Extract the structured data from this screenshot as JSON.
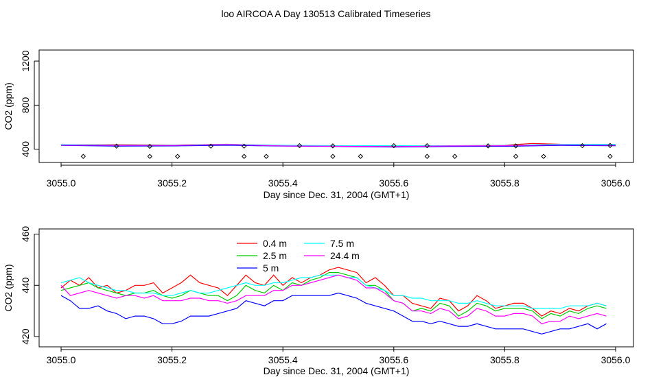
{
  "chart_data": [
    {
      "type": "line",
      "title": "loo AIRCOA A  Day 130513  Calibrated Timeseries",
      "xlabel": "Day since Dec. 31, 2004 (GMT+1)",
      "ylabel": "CO2 (ppm)",
      "xlim": [
        3055.0,
        3056.0
      ],
      "ylim": [
        280,
        1300
      ],
      "x_ticks": [
        "3055.0",
        "3055.2",
        "3055.4",
        "3055.6",
        "3055.8",
        "3056.0"
      ],
      "y_ticks": [
        "400",
        "800",
        "1200"
      ],
      "series": [
        {
          "name": "0.4 m",
          "color": "#ff0000",
          "x": [
            3055.0,
            3055.1,
            3055.2,
            3055.3,
            3055.4,
            3055.5,
            3055.6,
            3055.7,
            3055.8,
            3055.85,
            3055.9,
            3056.0
          ],
          "values": [
            440,
            441,
            438,
            445,
            432,
            430,
            424,
            430,
            436,
            452,
            445,
            441
          ]
        },
        {
          "name": "2.5 m",
          "color": "#00cc00",
          "x": [
            3055.0,
            3055.1,
            3055.2,
            3055.3,
            3055.4,
            3055.5,
            3055.6,
            3055.7,
            3055.8,
            3055.9,
            3056.0
          ],
          "values": [
            437,
            438,
            436,
            443,
            431,
            430,
            426,
            431,
            434,
            444,
            437
          ]
        },
        {
          "name": "5 m",
          "color": "#0000ff",
          "x": [
            3055.0,
            3055.1,
            3055.2,
            3055.3,
            3055.4,
            3055.5,
            3055.6,
            3055.7,
            3055.8,
            3055.9,
            3056.0
          ],
          "values": [
            434,
            428,
            430,
            436,
            428,
            425,
            420,
            425,
            427,
            434,
            431
          ]
        },
        {
          "name": "7.5 m",
          "color": "#00ffff",
          "x": [
            3055.0,
            3055.1,
            3055.2,
            3055.3,
            3055.4,
            3055.5,
            3055.6,
            3055.7,
            3055.8,
            3055.9,
            3056.0
          ],
          "values": [
            442,
            438,
            437,
            444,
            436,
            432,
            432,
            432,
            435,
            444,
            444
          ]
        },
        {
          "name": "24.4 m",
          "color": "#ff00ff",
          "x": [
            3055.0,
            3055.1,
            3055.2,
            3055.3,
            3055.4,
            3055.5,
            3055.6,
            3055.7,
            3055.8,
            3055.9,
            3056.0
          ],
          "values": [
            438,
            435,
            434,
            443,
            430,
            427,
            424,
            430,
            432,
            440,
            436
          ]
        }
      ],
      "markers_upper": {
        "x": [
          3055.1,
          3055.16,
          3055.27,
          3055.33,
          3055.43,
          3055.49,
          3055.6,
          3055.66,
          3055.77,
          3055.82,
          3055.94,
          3055.99
        ],
        "values": [
          428,
          426,
          428,
          428,
          432,
          430,
          432,
          432,
          430,
          430,
          432,
          434
        ]
      },
      "markers_lower": {
        "x": [
          3055.04,
          3055.16,
          3055.21,
          3055.33,
          3055.37,
          3055.49,
          3055.54,
          3055.66,
          3055.71,
          3055.82,
          3055.87,
          3055.99
        ],
        "values": [
          335,
          335,
          335,
          335,
          335,
          335,
          335,
          335,
          335,
          335,
          335,
          335
        ]
      }
    },
    {
      "type": "line",
      "title": "",
      "xlabel": "Day since Dec. 31, 2004 (GMT+1)",
      "ylabel": "CO2 (ppm)",
      "xlim": [
        3055.0,
        3056.0
      ],
      "ylim": [
        416,
        462
      ],
      "x_ticks": [
        "3055.0",
        "3055.2",
        "3055.4",
        "3055.6",
        "3055.8",
        "3056.0"
      ],
      "y_ticks": [
        "420",
        "440",
        "460"
      ],
      "legend": "top-left inside, two columns",
      "x": [
        3055.0,
        3055.0167,
        3055.0333,
        3055.05,
        3055.0667,
        3055.0833,
        3055.1,
        3055.1167,
        3055.1333,
        3055.15,
        3055.1667,
        3055.1833,
        3055.2,
        3055.2167,
        3055.2333,
        3055.25,
        3055.2667,
        3055.2833,
        3055.3,
        3055.3167,
        3055.3333,
        3055.35,
        3055.3667,
        3055.3833,
        3055.4,
        3055.4167,
        3055.4333,
        3055.45,
        3055.4667,
        3055.4833,
        3055.5,
        3055.5167,
        3055.5333,
        3055.55,
        3055.5667,
        3055.5833,
        3055.6,
        3055.6167,
        3055.6333,
        3055.65,
        3055.6667,
        3055.6833,
        3055.7,
        3055.7167,
        3055.7333,
        3055.75,
        3055.7667,
        3055.7833,
        3055.8,
        3055.8167,
        3055.8333,
        3055.85,
        3055.8667,
        3055.8833,
        3055.9,
        3055.9167,
        3055.9333,
        3055.95,
        3055.9667,
        3055.9833
      ],
      "series": [
        {
          "name": "0.4 m",
          "color": "#ff0000",
          "values": [
            439,
            442,
            440,
            443,
            439,
            440,
            437,
            438,
            440,
            440,
            441,
            437,
            439,
            441,
            444,
            441,
            440,
            439,
            436,
            440,
            444,
            441,
            440,
            444,
            440,
            443,
            441,
            443,
            444,
            446,
            447,
            446,
            445,
            441,
            443,
            440,
            436,
            436,
            433,
            432,
            431,
            435,
            434,
            430,
            432,
            436,
            434,
            431,
            432,
            433,
            433,
            431,
            428,
            430,
            429,
            431,
            430,
            432,
            433,
            432
          ]
        },
        {
          "name": "2.5 m",
          "color": "#00cc00",
          "values": [
            438,
            439,
            440,
            441,
            439,
            438,
            437,
            436,
            437,
            437,
            438,
            436,
            435,
            436,
            438,
            437,
            436,
            436,
            434,
            436,
            440,
            438,
            437,
            440,
            438,
            441,
            440,
            442,
            443,
            445,
            445,
            444,
            443,
            440,
            440,
            438,
            434,
            433,
            430,
            431,
            430,
            433,
            432,
            428,
            430,
            433,
            432,
            430,
            431,
            431,
            431,
            430,
            427,
            429,
            428,
            430,
            429,
            431,
            432,
            431
          ]
        },
        {
          "name": "5 m",
          "color": "#0000ff",
          "values": [
            436,
            434,
            431,
            431,
            432,
            430,
            429,
            427,
            428,
            428,
            427,
            425,
            425,
            426,
            428,
            428,
            428,
            429,
            430,
            431,
            434,
            433,
            432,
            434,
            434,
            436,
            436,
            436,
            436,
            436,
            437,
            436,
            435,
            433,
            432,
            431,
            430,
            428,
            426,
            426,
            425,
            426,
            425,
            424,
            424,
            425,
            424,
            423,
            423,
            423,
            423,
            422,
            421,
            422,
            423,
            423,
            424,
            425,
            423,
            425
          ]
        },
        {
          "name": "7.5 m",
          "color": "#00ffff",
          "values": [
            441,
            442,
            443,
            441,
            440,
            439,
            438,
            438,
            437,
            437,
            437,
            436,
            436,
            437,
            438,
            437,
            437,
            438,
            439,
            440,
            441,
            440,
            440,
            441,
            441,
            442,
            443,
            443,
            444,
            444,
            444,
            443,
            443,
            440,
            439,
            438,
            436,
            436,
            435,
            435,
            434,
            434,
            434,
            433,
            433,
            434,
            433,
            432,
            432,
            432,
            432,
            431,
            431,
            431,
            431,
            432,
            432,
            432,
            433,
            432
          ]
        },
        {
          "name": "24.4 m",
          "color": "#ff00ff",
          "values": [
            440,
            436,
            437,
            438,
            437,
            436,
            435,
            436,
            436,
            435,
            436,
            434,
            434,
            434,
            435,
            435,
            434,
            434,
            433,
            434,
            436,
            436,
            436,
            438,
            438,
            440,
            440,
            441,
            442,
            443,
            444,
            443,
            442,
            439,
            439,
            437,
            434,
            433,
            430,
            430,
            429,
            431,
            430,
            427,
            428,
            431,
            430,
            428,
            428,
            429,
            429,
            428,
            425,
            426,
            426,
            428,
            427,
            428,
            429,
            428
          ]
        }
      ]
    }
  ]
}
